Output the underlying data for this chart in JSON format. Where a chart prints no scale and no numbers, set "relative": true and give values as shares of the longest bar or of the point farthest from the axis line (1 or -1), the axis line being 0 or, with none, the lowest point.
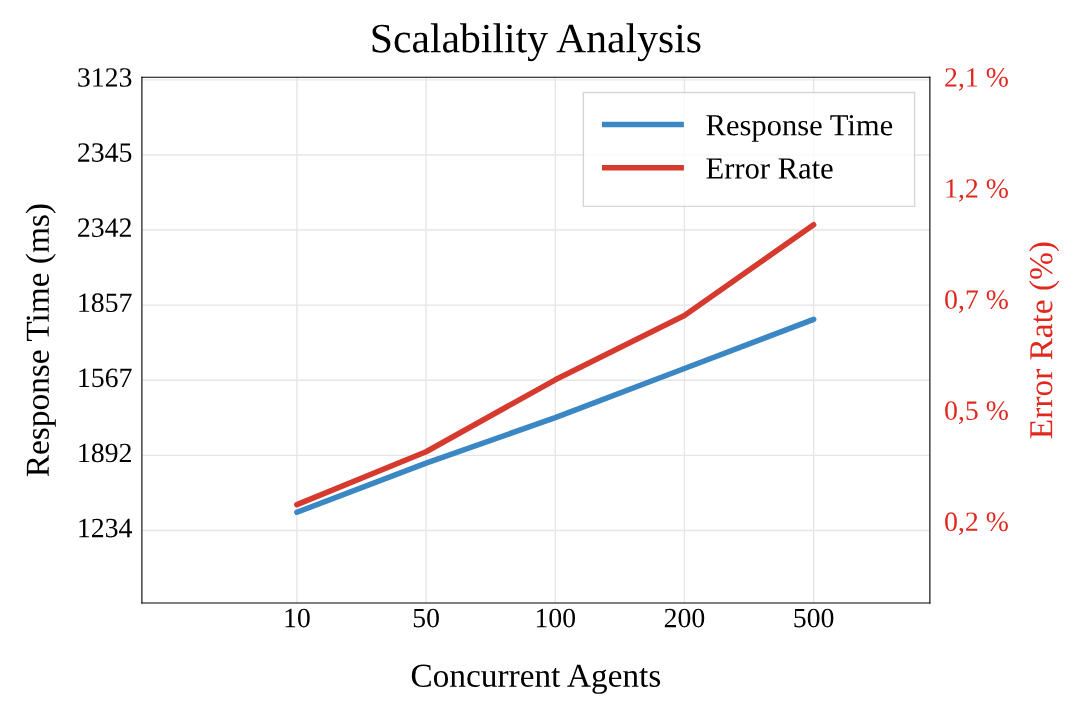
{
  "chart_data": {
    "type": "line",
    "title": "Scalability Analysis",
    "xlabel": "Concurrent Agents",
    "ylabel": "Response Time (ms)",
    "y2label": "Error Rate (%)",
    "categories": [
      "10",
      "50",
      "100",
      "200",
      "500"
    ],
    "relative": true,
    "annotations": [
      "3123",
      "2345",
      "2342",
      "1857",
      "1567",
      "1892",
      "1234",
      "2,1 %",
      "1,2 %",
      "0,7 %",
      "0,5 %",
      "0,2 %"
    ],
    "series": [
      {
        "name": "Response Time",
        "color": "#3a87c4",
        "values": [
          0.24,
          0.37,
          0.49,
          0.62,
          0.75
        ]
      },
      {
        "name": "Error Rate",
        "color": "#d63a2e",
        "values": [
          0.26,
          0.4,
          0.59,
          0.76,
          1
        ]
      }
    ],
    "grid": true,
    "legend": "top right",
    "marker": "none",
    "line_style": "solid"
  }
}
